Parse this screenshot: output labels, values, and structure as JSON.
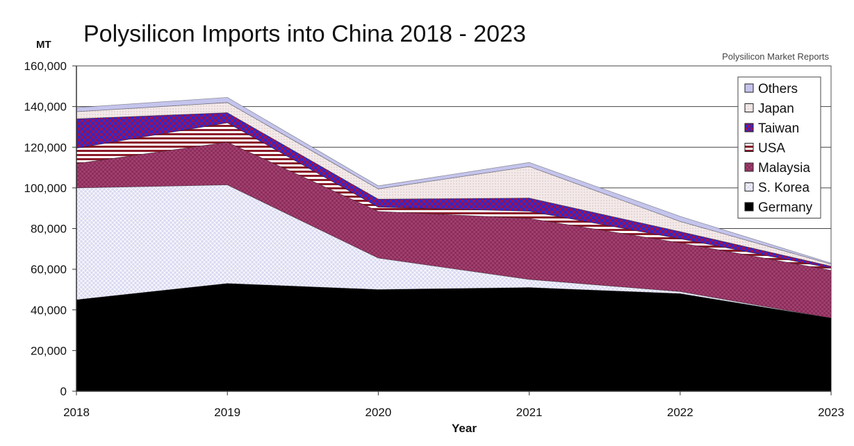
{
  "chart_data": {
    "type": "area",
    "stacked": true,
    "title": "Polysilicon Imports into China 2018 - 2023",
    "source": "Polysilicon Market Reports",
    "ylabel": "MT",
    "xlabel": "Year",
    "x": [
      "2018",
      "2019",
      "2020",
      "2021",
      "2022",
      "2023"
    ],
    "ylim": [
      0,
      160000
    ],
    "yticks": [
      0,
      20000,
      40000,
      60000,
      80000,
      100000,
      120000,
      140000,
      160000
    ],
    "ytick_labels": [
      "0",
      "20,000",
      "40,000",
      "60,000",
      "80,000",
      "100,000",
      "120,000",
      "140,000",
      "160,000"
    ],
    "grid": true,
    "legend_position": "top-right",
    "series": [
      {
        "name": "Germany",
        "color": "#000000",
        "values": [
          45000,
          53000,
          50000,
          51000,
          48000,
          36000
        ]
      },
      {
        "name": "S. Korea",
        "color": "#d6d6f0",
        "values": [
          55000,
          48500,
          15500,
          4000,
          1000,
          0
        ]
      },
      {
        "name": "Malaysia",
        "color": "#8e2f5e",
        "values": [
          12000,
          21000,
          23000,
          30000,
          24000,
          23500
        ]
      },
      {
        "name": "USA",
        "color": "#8b1a2a",
        "values": [
          7500,
          9500,
          2000,
          3500,
          2000,
          1000
        ]
      },
      {
        "name": "Taiwan",
        "color": "#5a148a",
        "values": [
          14500,
          5000,
          4000,
          6500,
          3500,
          1000
        ]
      },
      {
        "name": "Japan",
        "color": "#f2e6e6",
        "values": [
          3500,
          5000,
          5000,
          15500,
          5000,
          1000
        ]
      },
      {
        "name": "Others",
        "color": "#c4c4ec",
        "values": [
          2000,
          2500,
          1500,
          2000,
          2500,
          500
        ]
      }
    ],
    "legend_order": [
      "Others",
      "Japan",
      "Taiwan",
      "USA",
      "Malaysia",
      "S. Korea",
      "Germany"
    ]
  }
}
